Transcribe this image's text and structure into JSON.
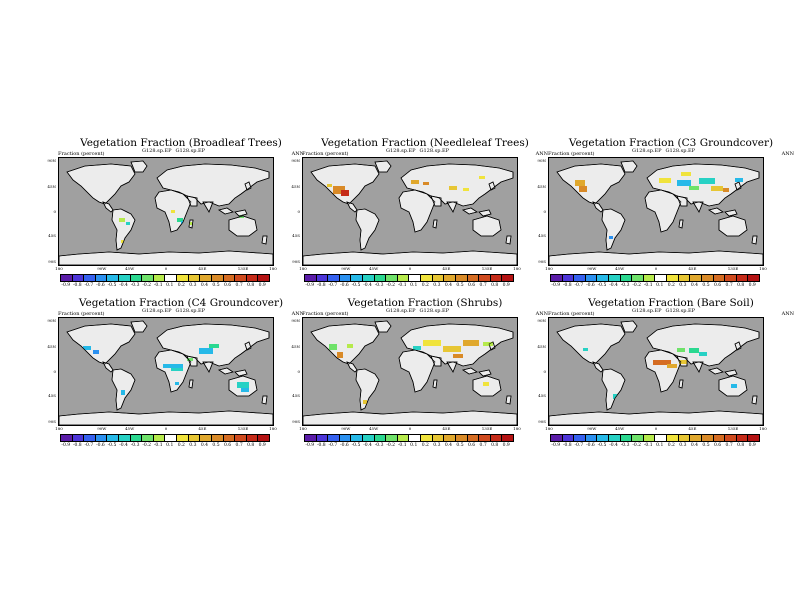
{
  "panels": [
    {
      "title": "Vegetation Fraction (Broadleaf Trees)",
      "left_label": "Fraction (percent)",
      "case_a": "G128.sp.EP",
      "case_b": "G128.sp.EP",
      "season": "ANN",
      "veg": "broadleaf"
    },
    {
      "title": "Vegetation Fraction (Needleleaf Trees)",
      "left_label": "Fraction (percent)",
      "case_a": "G128.sp.EP",
      "case_b": "G128.sp.EP",
      "season": "ANN",
      "veg": "needleleaf"
    },
    {
      "title": "Vegetation Fraction (C3 Groundcover)",
      "left_label": "Fraction (percent)",
      "case_a": "G128.sp.EP",
      "case_b": "G128.sp.EP",
      "season": "ANN",
      "veg": "c3"
    },
    {
      "title": "Vegetation Fraction (C4 Groundcover)",
      "left_label": "Fraction (percent)",
      "case_a": "G128.sp.EP",
      "case_b": "G128.sp.EP",
      "season": "ANN",
      "veg": "c4"
    },
    {
      "title": "Vegetation Fraction (Shrubs)",
      "left_label": "Fraction (percent)",
      "case_a": "G128.sp.EP",
      "case_b": "G128.sp.EP",
      "season": "ANN",
      "veg": "shrubs"
    },
    {
      "title": "Vegetation Fraction (Bare Soil)",
      "left_label": "Fraction (percent)",
      "case_a": "G128.sp.EP",
      "case_b": "G128.sp.EP",
      "season": "ANN",
      "veg": "bare"
    }
  ],
  "lat_ticks": [
    "90N",
    "45N",
    "0",
    "45S",
    "90S"
  ],
  "lon_ticks": [
    "180",
    "90W",
    "45W",
    "0",
    "45E",
    "135E",
    "180"
  ],
  "colorbar": {
    "labels": [
      "-0.9",
      "-0.8",
      "-0.7",
      "-0.6",
      "-0.5",
      "-0.4",
      "-0.3",
      "-0.2",
      "-0.1",
      "0.1",
      "0.2",
      "0.3",
      "0.4",
      "0.5",
      "0.6",
      "0.7",
      "0.8",
      "0.9"
    ],
    "colors": [
      "#5a1ca8",
      "#4c35d8",
      "#3560ef",
      "#2a90f0",
      "#26b9e8",
      "#27d1c4",
      "#2ad890",
      "#6fe26a",
      "#b6ea4c",
      "#ffffff",
      "#f0e33c",
      "#e7c634",
      "#e0a82d",
      "#d98a27",
      "#d56c22",
      "#cf4a1e",
      "#c52b18",
      "#b41212"
    ]
  },
  "map_colors": {
    "ocean": "#a0a0a0",
    "land": "#ececec",
    "coast": "#000000"
  }
}
